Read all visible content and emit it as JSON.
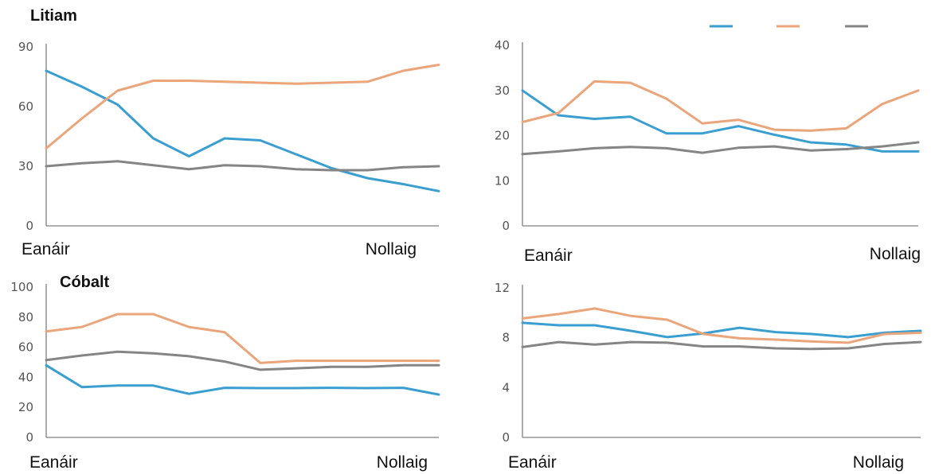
{
  "colors": {
    "blue": "#3a9fd0",
    "orange": "#eba57b",
    "gray": "#858585",
    "axis": "#7f7f7f"
  },
  "legend": [
    {
      "key": "blue",
      "color": "#3a9fd0"
    },
    {
      "key": "orange",
      "color": "#eba57b"
    },
    {
      "key": "gray",
      "color": "#858585"
    }
  ],
  "chart_data": [
    {
      "type": "line",
      "title": "Litiam",
      "x_start_label": "Eanáir",
      "x_end_label": "Nollaig",
      "x": [
        1,
        2,
        3,
        4,
        5,
        6,
        7,
        8,
        9,
        10,
        11,
        12
      ],
      "ylim": [
        0,
        90
      ],
      "yticks": [
        0,
        30,
        60,
        90
      ],
      "series": [
        {
          "color": "#3a9fd0",
          "values": [
            78,
            70,
            61,
            44,
            35,
            44,
            43,
            36,
            29,
            24,
            21,
            17.5
          ]
        },
        {
          "color": "#eba57b",
          "values": [
            39,
            54,
            68,
            73,
            73,
            72.5,
            72,
            71.5,
            72,
            72.5,
            78,
            81
          ]
        },
        {
          "color": "#858585",
          "values": [
            30,
            31.5,
            32.5,
            30.5,
            28.5,
            30.5,
            30,
            28.5,
            28,
            28,
            29.5,
            30
          ]
        }
      ]
    },
    {
      "type": "line",
      "title": "",
      "x_start_label": "Eanáir",
      "x_end_label": "Nollaig",
      "x": [
        1,
        2,
        3,
        4,
        5,
        6,
        7,
        8,
        9,
        10,
        11,
        12
      ],
      "ylim": [
        0,
        40
      ],
      "yticks": [
        0,
        10,
        20,
        30,
        40
      ],
      "series": [
        {
          "color": "#3a9fd0",
          "values": [
            30,
            24.5,
            23.7,
            24.2,
            20.5,
            20.5,
            22.1,
            20.2,
            18.5,
            18,
            16.5,
            16.5
          ]
        },
        {
          "color": "#eba57b",
          "values": [
            23,
            25,
            32,
            31.7,
            28.2,
            22.7,
            23.5,
            21.3,
            21.1,
            21.6,
            27,
            30
          ]
        },
        {
          "color": "#858585",
          "values": [
            15.9,
            16.5,
            17.2,
            17.5,
            17.2,
            16.2,
            17.3,
            17.6,
            16.7,
            17,
            17.6,
            18.5
          ]
        }
      ]
    },
    {
      "type": "line",
      "title": "Cóbalt",
      "x_start_label": "Eanáir",
      "x_end_label": "Nollaig",
      "x": [
        1,
        2,
        3,
        4,
        5,
        6,
        7,
        8,
        9,
        10,
        11,
        12
      ],
      "ylim": [
        0,
        100
      ],
      "yticks": [
        0,
        20,
        40,
        60,
        80,
        100
      ],
      "series": [
        {
          "color": "#3a9fd0",
          "values": [
            48,
            33.5,
            34.5,
            34.5,
            29,
            33,
            32.8,
            32.8,
            33,
            32.8,
            33,
            28.5
          ]
        },
        {
          "color": "#eba57b",
          "values": [
            70.5,
            73.5,
            82,
            82,
            73.5,
            70,
            49.5,
            51,
            51,
            51,
            51,
            51
          ]
        },
        {
          "color": "#858585",
          "values": [
            51.5,
            54.5,
            57,
            56,
            54,
            50.5,
            45,
            46,
            47,
            47,
            48,
            48
          ]
        }
      ]
    },
    {
      "type": "line",
      "title": "",
      "x_start_label": "Eanáir",
      "x_end_label": "Nollaig",
      "x": [
        1,
        2,
        3,
        4,
        5,
        6,
        7,
        8,
        9,
        10,
        11,
        12
      ],
      "ylim": [
        0,
        12
      ],
      "yticks": [
        0,
        4,
        8,
        12
      ],
      "series": [
        {
          "color": "#3a9fd0",
          "values": [
            9.2,
            9,
            9,
            8.55,
            8.05,
            8.35,
            8.8,
            8.45,
            8.3,
            8.05,
            8.4,
            8.55
          ]
        },
        {
          "color": "#eba57b",
          "values": [
            9.55,
            9.9,
            10.35,
            9.75,
            9.45,
            8.3,
            7.95,
            7.85,
            7.7,
            7.6,
            8.3,
            8.4
          ]
        },
        {
          "color": "#858585",
          "values": [
            7.25,
            7.65,
            7.45,
            7.65,
            7.6,
            7.3,
            7.3,
            7.15,
            7.1,
            7.15,
            7.5,
            7.65
          ]
        }
      ]
    }
  ]
}
